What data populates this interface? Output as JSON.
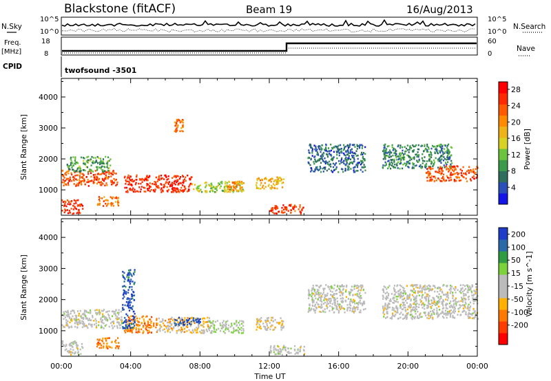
{
  "header": {
    "station": "Blackstone (fitACF)",
    "beam": "Beam 19",
    "date": "16/Aug/2013"
  },
  "strips": {
    "nsky_label": "N.Sky",
    "nsearch_label": "N.Search",
    "nsky_ticks": [
      "10^5",
      "10^0"
    ],
    "nsearch_ticks": [
      "10^5",
      "10^0"
    ],
    "freq_label": "Freq.",
    "freq_unit": "[MHz]",
    "freq_ticks": [
      "18",
      "8"
    ],
    "nave_label": "Nave",
    "nave_ticks": [
      "60",
      "0"
    ],
    "cpid_label": "CPID",
    "cpid_value": "twofsound -3501"
  },
  "colors": {
    "power_scale": [
      "#1414e6",
      "#2a4fb8",
      "#2f6e5c",
      "#3c9a4c",
      "#6cc43c",
      "#d7d223",
      "#f0b219",
      "#ff8a00",
      "#ff5a00",
      "#ff2a00",
      "#ff0000"
    ],
    "velocity_scale": [
      "#ff0000",
      "#ff3c00",
      "#ff7800",
      "#ffb000",
      "#bbbbbb",
      "#bbbbbb",
      "#7cd23a",
      "#2f9b43",
      "#2b6aa8",
      "#1e3cc8"
    ],
    "frame": "#000000"
  },
  "chart_data": [
    {
      "type": "heatmap",
      "title": "Power",
      "ylabel": "Slant Range [km]",
      "xlabel": "",
      "x_ticks": [
        "00:00",
        "04:00",
        "08:00",
        "12:00",
        "16:00",
        "20:00",
        "00:00"
      ],
      "y_ticks": [
        "1000",
        "2000",
        "3000",
        "4000"
      ],
      "ylim": [
        180,
        4600
      ],
      "xlim_hours": [
        0,
        24
      ],
      "colorbar_label": "Power [dB]",
      "colorbar_ticks": [
        "4",
        "8",
        "12",
        "16",
        "20",
        "24",
        "28"
      ],
      "color_range": [
        0,
        30
      ],
      "regions": [
        {
          "t": [
            0.0,
            3.2
          ],
          "r": [
            1150,
            1650
          ],
          "v": 24
        },
        {
          "t": [
            0.3,
            2.8
          ],
          "r": [
            1600,
            2100
          ],
          "v": 10
        },
        {
          "t": [
            0.0,
            1.2
          ],
          "r": [
            250,
            700
          ],
          "v": 26
        },
        {
          "t": [
            2.0,
            3.3
          ],
          "r": [
            500,
            800
          ],
          "v": 22
        },
        {
          "t": [
            3.6,
            7.5
          ],
          "r": [
            950,
            1500
          ],
          "v": 26
        },
        {
          "t": [
            7.5,
            10.5
          ],
          "r": [
            950,
            1300
          ],
          "v": 14
        },
        {
          "t": [
            9.5,
            10.5
          ],
          "r": [
            1000,
            1300
          ],
          "v": 20
        },
        {
          "t": [
            11.2,
            12.8
          ],
          "r": [
            1050,
            1450
          ],
          "v": 18
        },
        {
          "t": [
            12.0,
            14.0
          ],
          "r": [
            250,
            550
          ],
          "v": 25
        },
        {
          "t": [
            14.2,
            17.5
          ],
          "r": [
            1600,
            2500
          ],
          "v": 6
        },
        {
          "t": [
            18.5,
            22.5
          ],
          "r": [
            1700,
            2500
          ],
          "v": 8
        },
        {
          "t": [
            21.0,
            24.0
          ],
          "r": [
            1300,
            1800
          ],
          "v": 24
        },
        {
          "t": [
            6.5,
            7.0
          ],
          "r": [
            2900,
            3300
          ],
          "v": 22
        }
      ]
    },
    {
      "type": "heatmap",
      "title": "Velocity",
      "ylabel": "Slant Range [km]",
      "xlabel": "Time UT",
      "x_ticks": [
        "00:00",
        "04:00",
        "08:00",
        "12:00",
        "16:00",
        "20:00",
        "00:00"
      ],
      "y_ticks": [
        "1000",
        "2000",
        "3000",
        "4000"
      ],
      "ylim": [
        180,
        4600
      ],
      "xlim_hours": [
        0,
        24
      ],
      "colorbar_label": "Velocity [m s^-1]",
      "colorbar_ticks": [
        "200",
        "100",
        "50",
        "15",
        "-15",
        "-50",
        "-100",
        "-200"
      ],
      "color_range": [
        -250,
        250
      ],
      "regions": [
        {
          "t": [
            0.0,
            3.5
          ],
          "r": [
            1100,
            1700
          ],
          "v": 0
        },
        {
          "t": [
            0.0,
            1.2
          ],
          "r": [
            250,
            700
          ],
          "v": 0
        },
        {
          "t": [
            2.0,
            3.3
          ],
          "r": [
            450,
            800
          ],
          "v": -120
        },
        {
          "t": [
            3.6,
            5.5
          ],
          "r": [
            950,
            1500
          ],
          "v": -120
        },
        {
          "t": [
            5.5,
            8.5
          ],
          "r": [
            950,
            1450
          ],
          "v": -60
        },
        {
          "t": [
            6.5,
            8.0
          ],
          "r": [
            1200,
            1450
          ],
          "v": 200
        },
        {
          "t": [
            8.5,
            10.5
          ],
          "r": [
            950,
            1350
          ],
          "v": 40
        },
        {
          "t": [
            11.2,
            12.8
          ],
          "r": [
            1050,
            1450
          ],
          "v": -30
        },
        {
          "t": [
            12.0,
            14.0
          ],
          "r": [
            250,
            550
          ],
          "v": 0
        },
        {
          "t": [
            14.2,
            17.5
          ],
          "r": [
            1600,
            2500
          ],
          "v": 0
        },
        {
          "t": [
            18.5,
            24.0
          ],
          "r": [
            1400,
            2500
          ],
          "v": 0
        },
        {
          "t": [
            3.5,
            4.2
          ],
          "r": [
            1100,
            3000
          ],
          "v": 200
        }
      ]
    }
  ]
}
